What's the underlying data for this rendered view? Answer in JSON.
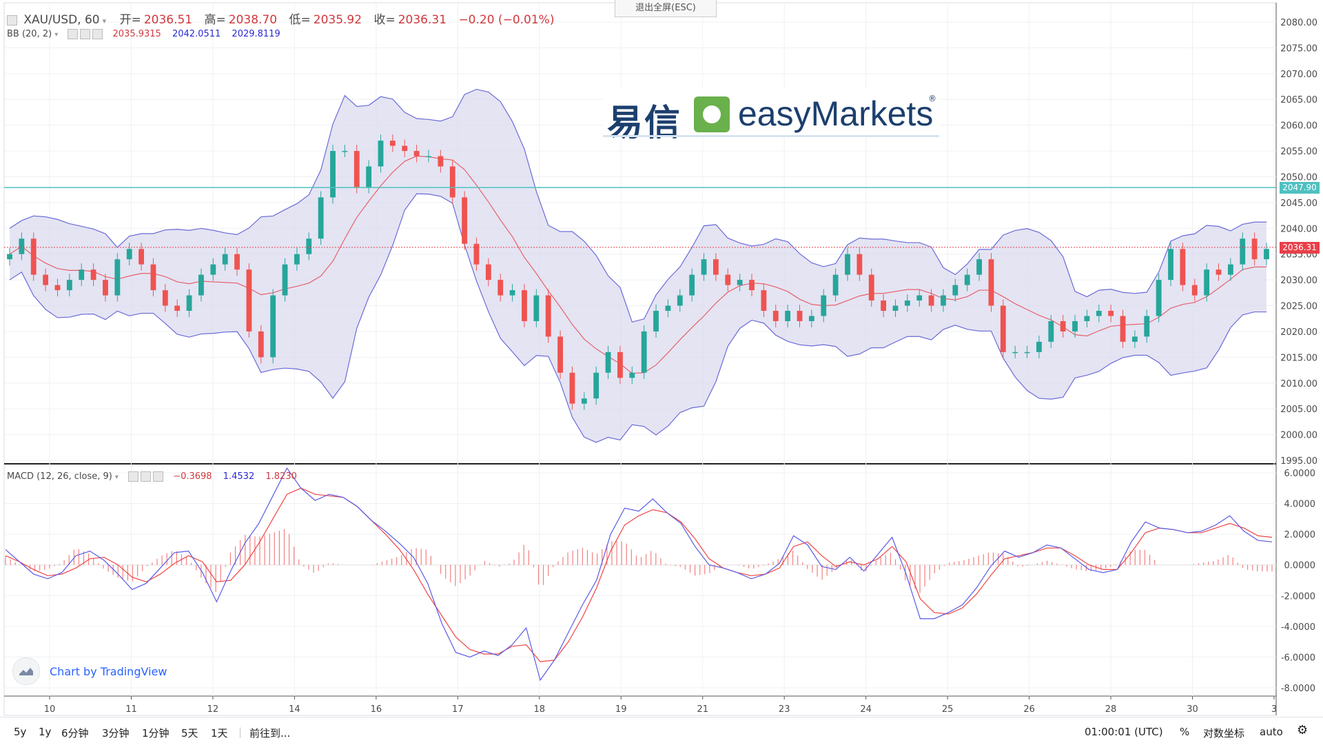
{
  "window": {
    "exit_fullscreen": "退出全屏(ESC)"
  },
  "header": {
    "symbol": "XAU/USD, 60",
    "open_label": "开=",
    "open": "2036.51",
    "high_label": "高=",
    "high": "2038.70",
    "low_label": "低=",
    "low": "2035.92",
    "close_label": "收=",
    "close": "2036.31",
    "change": "−0.20 (−0.01%)"
  },
  "bb_indicator": {
    "label": "BB (20, 2)",
    "basis": "2035.9315",
    "upper": "2042.0511",
    "lower": "2029.8119"
  },
  "macd_indicator": {
    "label": "MACD (12, 26, close, 9)",
    "histogram": "−0.3698",
    "macd": "1.4532",
    "signal": "1.8230"
  },
  "logo": {
    "cn": "易信",
    "en": "easyMarkets",
    "reg": "®"
  },
  "credit": {
    "text": "Chart by TradingView"
  },
  "price_tags": {
    "horizontal_line": "2047.90",
    "last_price": "2036.31"
  },
  "bottom_bar": {
    "ranges": [
      "5y",
      "1y",
      "6分钟",
      "3分钟",
      "1分钟",
      "5天",
      "1天"
    ],
    "goto": "前往到...",
    "time": "01:00:01 (UTC)",
    "percent": "%",
    "log_scale": "对数坐标",
    "auto": "auto"
  },
  "colors": {
    "up": "#26a69a",
    "down": "#ef5350",
    "band": "#6a6ad8",
    "band_fill": "#d8d8ee",
    "basis": "#e8606a",
    "hline": "#4fc0c0",
    "last": "#e8404a"
  },
  "chart_data": [
    {
      "type": "candlestick",
      "title": "XAU/USD, 60",
      "price_axis_ticks": [
        "2080.00",
        "2075.00",
        "2070.00",
        "2065.00",
        "2060.00",
        "2055.00",
        "2050.00",
        "2045.00",
        "2040.00",
        "2035.00",
        "2030.00",
        "2025.00",
        "2020.00",
        "2015.00",
        "2010.00",
        "2005.00",
        "2000.00",
        "1995.00"
      ],
      "ylim": [
        1995,
        2080
      ],
      "x_ticks": [
        "10",
        "11",
        "12",
        "14",
        "16",
        "17",
        "18",
        "19",
        "21",
        "23",
        "24",
        "25",
        "26",
        "28",
        "30",
        "3"
      ],
      "close_series": [
        2035,
        2038,
        2031,
        2029,
        2028,
        2030,
        2032,
        2030,
        2027,
        2034,
        2036,
        2033,
        2028,
        2025,
        2024,
        2027,
        2031,
        2033,
        2035,
        2032,
        2020,
        2015,
        2027,
        2033,
        2035,
        2038,
        2046,
        2055,
        2055,
        2048,
        2052,
        2057,
        2056,
        2055,
        2054,
        2054,
        2052,
        2046,
        2037,
        2033,
        2030,
        2027,
        2028,
        2022,
        2027,
        2019,
        2012,
        2006,
        2007,
        2012,
        2016,
        2011,
        2012,
        2020,
        2024,
        2025,
        2027,
        2031,
        2034,
        2031,
        2029,
        2030,
        2028,
        2024,
        2022,
        2024,
        2022,
        2023,
        2027,
        2031,
        2035,
        2031,
        2026,
        2024,
        2025,
        2026,
        2027,
        2025,
        2027,
        2029,
        2031,
        2034,
        2025,
        2016,
        2016,
        2016,
        2018,
        2022,
        2020,
        2022,
        2023,
        2024,
        2023,
        2018,
        2019,
        2023,
        2030,
        2036,
        2029,
        2027,
        2032,
        2031,
        2033,
        2038,
        2034,
        2036
      ],
      "lines": {
        "horizontal_level": 2047.9,
        "last_price": 2036.31
      }
    },
    {
      "type": "line",
      "title": "MACD (12, 26, close, 9)",
      "ylim": [
        -8,
        6
      ],
      "y_ticks": [
        "6.0000",
        "4.0000",
        "2.0000",
        "0.0000",
        "-2.0000",
        "-4.0000",
        "-6.0000",
        "-8.0000"
      ],
      "series": [
        {
          "name": "MACD",
          "values": [
            1.0,
            0.2,
            -0.6,
            -0.9,
            -0.5,
            0.6,
            0.9,
            0.3,
            -0.6,
            -1.6,
            -1.2,
            -0.2,
            0.8,
            0.9,
            -0.5,
            -2.4,
            -0.4,
            1.4,
            2.7,
            4.5,
            6.3,
            5.0,
            4.2,
            4.6,
            4.4,
            3.8,
            2.9,
            2.2,
            1.4,
            0.5,
            -1.2,
            -3.8,
            -5.7,
            -6.0,
            -5.6,
            -5.9,
            -5.2,
            -4.1,
            -7.5,
            -6.2,
            -4.4,
            -2.6,
            -1.0,
            2.0,
            3.7,
            3.5,
            4.3,
            3.4,
            2.7,
            1.2,
            0.0,
            -0.2,
            -0.5,
            -0.9,
            -0.6,
            0.1,
            1.9,
            1.3,
            -0.1,
            -0.3,
            0.5,
            -0.4,
            0.7,
            1.8,
            -0.6,
            -3.5,
            -3.5,
            -3.1,
            -2.6,
            -1.5,
            -0.1,
            0.9,
            0.5,
            0.8,
            1.3,
            1.1,
            0.4,
            -0.3,
            -0.5,
            -0.3,
            1.5,
            2.8,
            2.4,
            2.3,
            2.1,
            2.2,
            2.6,
            3.2,
            2.2,
            1.6,
            1.5
          ]
        },
        {
          "name": "Signal",
          "values": [
            0.6,
            0.2,
            -0.3,
            -0.7,
            -0.6,
            -0.2,
            0.4,
            0.5,
            0.0,
            -0.8,
            -1.1,
            -0.6,
            0.1,
            0.6,
            0.2,
            -1.1,
            -1.0,
            0.0,
            1.4,
            3.0,
            4.6,
            5.0,
            4.6,
            4.5,
            4.4,
            3.8,
            2.9,
            2.0,
            1.0,
            -0.3,
            -1.9,
            -3.3,
            -4.7,
            -5.5,
            -5.8,
            -5.8,
            -5.3,
            -5.2,
            -6.3,
            -6.2,
            -5.0,
            -3.4,
            -1.5,
            0.9,
            2.6,
            3.2,
            3.6,
            3.4,
            2.8,
            1.7,
            0.4,
            -0.2,
            -0.5,
            -0.7,
            -0.6,
            -0.2,
            1.2,
            1.5,
            0.6,
            -0.1,
            0.2,
            0.0,
            0.4,
            1.2,
            0.2,
            -2.2,
            -3.1,
            -3.2,
            -2.8,
            -1.9,
            -0.7,
            0.4,
            0.6,
            0.8,
            1.1,
            1.1,
            0.6,
            0.0,
            -0.3,
            -0.3,
            0.8,
            2.1,
            2.4,
            2.3,
            2.1,
            2.1,
            2.4,
            2.7,
            2.4,
            1.9,
            1.8
          ]
        }
      ]
    }
  ]
}
